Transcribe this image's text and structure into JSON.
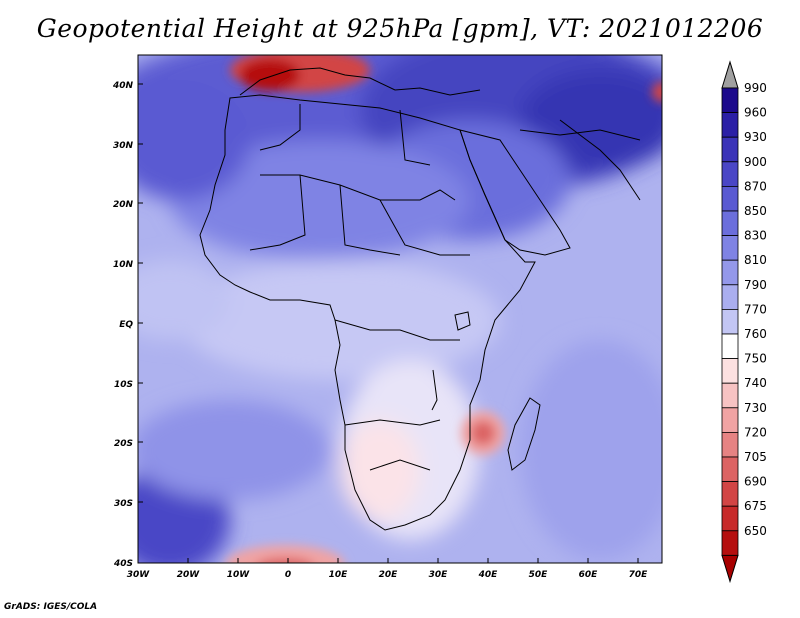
{
  "title": "Geopotential Height at 925hPa [gpm], VT: 2021012206",
  "credit": "GrADS: IGES/COLA",
  "map": {
    "region": "Africa",
    "variable": "Geopotential Height",
    "level": "925hPa",
    "units": "gpm",
    "valid_time": "2021012206",
    "lat_labels": [
      "40N",
      "30N",
      "20N",
      "10N",
      "EQ",
      "10S",
      "20S",
      "30S",
      "40S"
    ],
    "lon_labels": [
      "30W",
      "20W",
      "10W",
      "0",
      "10E",
      "20E",
      "30E",
      "40E",
      "50E",
      "60E",
      "70E"
    ],
    "lon_range": [
      -30,
      75
    ],
    "lat_range": [
      -40,
      45
    ]
  },
  "colorbar": {
    "levels": [
      "990",
      "960",
      "930",
      "900",
      "870",
      "850",
      "830",
      "810",
      "790",
      "770",
      "760",
      "750",
      "740",
      "730",
      "720",
      "705",
      "690",
      "675",
      "650"
    ],
    "colors": [
      "#1c0a8c",
      "#2b1fa6",
      "#3b33b8",
      "#4a46c6",
      "#5a5ad2",
      "#6b6edc",
      "#7f83e4",
      "#9498ea",
      "#aaaeef",
      "#c3c6f4",
      "#ffffff",
      "#fde1e1",
      "#f7c3c3",
      "#f0a3a3",
      "#e68383",
      "#dc6363",
      "#d24545",
      "#c72a2a",
      "#b50f0f"
    ],
    "over_color": "#a0a0a0",
    "under_color": "#a80000"
  }
}
